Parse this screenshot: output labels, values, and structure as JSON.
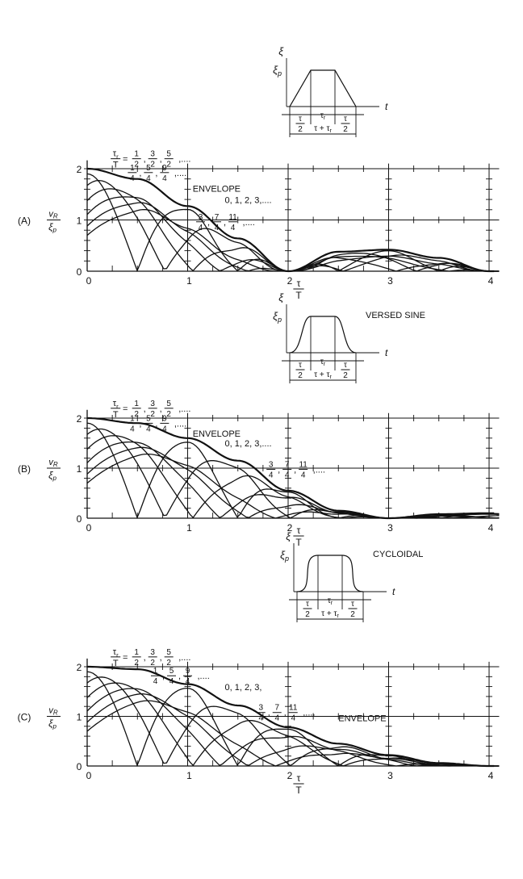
{
  "chart_data": [
    {
      "panel_label": "(A)",
      "pulse_name": "",
      "type": "line",
      "xlim": [
        0,
        4.1
      ],
      "ylim": [
        0,
        2.1
      ],
      "ylabel_num": "v",
      "ylabel_sub": "R",
      "ylabel_den": "ξ",
      "ylabel_den_sub": "p",
      "xlabel_num": "τ",
      "xlabel_den": "T",
      "xticks": [
        "0",
        "1",
        "2",
        "3",
        "4"
      ],
      "yticks": [
        "0",
        "1",
        "2"
      ],
      "grid_v": [
        1,
        2,
        3,
        4
      ],
      "grid_h": [
        1,
        2
      ],
      "grid_h_xmax": 4.1,
      "envelope_label": "ENVELOPE",
      "annotations": [
        {
          "lhs_num": "τ",
          "lhs_num_sub": "r",
          "lhs_den": "T",
          "values": [
            [
              "1",
              "2"
            ],
            [
              "3",
              "2"
            ],
            [
              "5",
              "2"
            ]
          ],
          "tail": ",....",
          "x": 0.62,
          "y": 2.1
        },
        {
          "values": [
            [
              "1",
              "4"
            ],
            [
              "5",
              "4"
            ],
            [
              "9",
              "4"
            ]
          ],
          "tail": ",....",
          "x": 0.77,
          "y": 1.83
        },
        {
          "values": [],
          "text": "0, 1, 2, 3,....",
          "x": 1.45,
          "y": 1.3
        },
        {
          "values": [
            [
              "3",
              "4"
            ],
            [
              "7",
              "4"
            ],
            [
              "11",
              "4"
            ]
          ],
          "tail": ",....",
          "x": 1.45,
          "y": 0.87
        }
      ],
      "inset": {
        "ylabel": "ξ",
        "peak_label": "ξ",
        "peak_sub": "p",
        "tlabel": "t",
        "seg1_num": "τ",
        "seg1_den": "2",
        "seg2": "τ",
        "seg2_sub": "r",
        "seg3_num": "τ",
        "seg3_den": "2",
        "total": "τ + τ",
        "total_sub": "r",
        "shape": "trapezoid"
      },
      "series": [
        {
          "ratio": "0",
          "x": [
            0,
            0.5,
            1,
            1.5,
            2,
            2.5,
            3,
            3.5,
            4
          ],
          "y": [
            1.41,
            1.41,
            0.0,
            0.06,
            0.0,
            0.05,
            0.0,
            0.0,
            0.0
          ]
        },
        {
          "ratio": "1/4",
          "x": [
            0,
            0.5,
            1,
            1.5,
            2,
            2.5,
            3,
            3.5,
            4
          ],
          "y": [
            1.8,
            1.65,
            0.9,
            0.12,
            0.0,
            0.25,
            0.28,
            0.1,
            0.0
          ]
        },
        {
          "ratio": "1/2",
          "x": [
            0,
            0.5,
            1,
            1.5,
            2,
            2.5,
            3,
            3.5,
            4
          ],
          "y": [
            2.0,
            1.78,
            1.27,
            0.63,
            0.0,
            0.36,
            0.42,
            0.18,
            0.0
          ]
        },
        {
          "ratio": "envelope",
          "x": [
            0,
            0.5,
            1,
            1.5,
            2,
            2.5,
            3,
            3.5,
            4
          ],
          "y": [
            2.0,
            1.8,
            1.27,
            0.64,
            0.0,
            0.38,
            0.42,
            0.26,
            0.0
          ]
        }
      ]
    },
    {
      "panel_label": "(B)",
      "pulse_name": "VERSED SINE",
      "type": "line",
      "xlim": [
        0,
        4.1
      ],
      "ylim": [
        0,
        2.1
      ],
      "ylabel_num": "v",
      "ylabel_sub": "R",
      "ylabel_den": "ξ",
      "ylabel_den_sub": "p",
      "xlabel_num": "τ",
      "xlabel_den": "T",
      "xticks": [
        "0",
        "1",
        "2",
        "3",
        "4"
      ],
      "yticks": [
        "0",
        "1",
        "2"
      ],
      "grid_v": [
        1,
        2,
        3,
        4
      ],
      "grid_h": [
        1,
        2
      ],
      "grid_h_xmax": 4.1,
      "envelope_label": "ENVELOPE",
      "annotations": [
        {
          "lhs_num": "τ",
          "lhs_num_sub": "r",
          "lhs_den": "T",
          "values": [
            [
              "1",
              "2"
            ],
            [
              "3",
              "2"
            ],
            [
              "5",
              "2"
            ]
          ],
          "tail": ",....",
          "x": 0.62,
          "y": 2.1
        },
        {
          "values": [
            [
              "1",
              "4"
            ],
            [
              "5",
              "4"
            ],
            [
              "9",
              "4"
            ]
          ],
          "tail": ",....",
          "x": 0.77,
          "y": 1.8
        },
        {
          "values": [],
          "text": "0, 1, 2, 3,....",
          "x": 1.45,
          "y": 1.4
        },
        {
          "values": [
            [
              "3",
              "4"
            ],
            [
              "7",
              "4"
            ],
            [
              "11",
              "4"
            ]
          ],
          "tail": ",....",
          "x": 2.15,
          "y": 0.88
        }
      ],
      "inset": {
        "ylabel": "ξ",
        "peak_label": "ξ",
        "peak_sub": "p",
        "tlabel": "t",
        "seg1_num": "τ",
        "seg1_den": "2",
        "seg2": "τ",
        "seg2_sub": "r",
        "seg3_num": "τ",
        "seg3_den": "2",
        "total": "τ + τ",
        "total_sub": "r",
        "shape": "versed"
      },
      "series": [
        {
          "ratio": "envelope",
          "x": [
            0,
            0.5,
            1,
            1.5,
            2,
            2.5,
            3,
            3.5,
            4
          ],
          "y": [
            2.0,
            1.9,
            1.6,
            1.15,
            0.55,
            0.15,
            0.0,
            0.08,
            0.1
          ]
        }
      ]
    },
    {
      "panel_label": "(C)",
      "pulse_name": "CYCLOIDAL",
      "type": "line",
      "xlim": [
        0,
        4.1
      ],
      "ylim": [
        0,
        2.1
      ],
      "ylabel_num": "v",
      "ylabel_sub": "R",
      "ylabel_den": "ξ",
      "ylabel_den_sub": "p",
      "xlabel_num": "τ",
      "xlabel_den": "T",
      "xticks": [
        "0",
        "1",
        "2",
        "3",
        "4"
      ],
      "yticks": [
        "0",
        "1",
        "2"
      ],
      "grid_v": [
        1,
        2,
        3,
        4
      ],
      "grid_h": [
        1,
        2
      ],
      "grid_h_xmax": 4.1,
      "envelope_label": "ENVELOPE",
      "annotations": [
        {
          "lhs_num": "τ",
          "lhs_num_sub": "r",
          "lhs_den": "T",
          "values": [
            [
              "1",
              "2"
            ],
            [
              "3",
              "2"
            ],
            [
              "5",
              "2"
            ]
          ],
          "tail": ",....",
          "x": 0.62,
          "y": 2.1
        },
        {
          "values": [
            [
              "1",
              "4"
            ],
            [
              "5",
              "4"
            ],
            [
              "9",
              "4"
            ]
          ],
          "tail": ",....",
          "x": 1.0,
          "y": 1.72
        },
        {
          "values": [],
          "text": "0, 1, 2, 3,",
          "x": 1.45,
          "y": 1.5
        },
        {
          "values": [
            [
              "3",
              "4"
            ],
            [
              "7",
              "4"
            ],
            [
              "11",
              "4"
            ]
          ],
          "tail": ",....",
          "x": 2.05,
          "y": 0.98
        }
      ],
      "inset": {
        "ylabel": "ξ",
        "peak_label": "ξ",
        "peak_sub": "p",
        "tlabel": "t",
        "seg1_num": "τ",
        "seg1_den": "2",
        "seg2": "τ",
        "seg2_sub": "r",
        "seg3_num": "τ",
        "seg3_den": "2",
        "total": "τ + τ",
        "total_sub": "r",
        "shape": "cycloidal"
      },
      "series": [
        {
          "ratio": "envelope",
          "x": [
            0,
            0.5,
            1,
            1.5,
            2,
            2.5,
            3,
            3.5,
            4
          ],
          "y": [
            2.0,
            1.95,
            1.65,
            1.22,
            0.78,
            0.45,
            0.22,
            0.06,
            0.0
          ]
        }
      ]
    }
  ]
}
